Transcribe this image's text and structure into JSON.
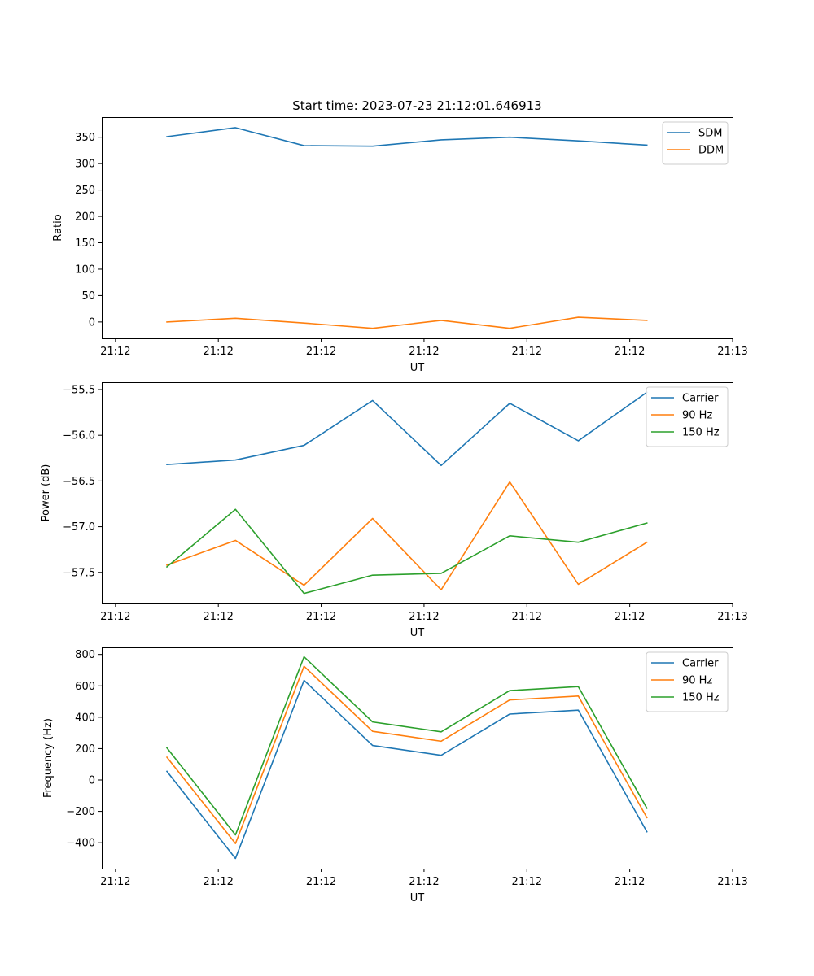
{
  "figure": {
    "title": "Start time: 2023-07-23 21:12:01.646913"
  },
  "colors": {
    "blue": "#1f77b4",
    "orange": "#ff7f0e",
    "green": "#2ca02c"
  },
  "chart_data": [
    {
      "type": "line",
      "title": "Start time: 2023-07-23 21:12:01.646913",
      "xlabel": "UT",
      "ylabel": "Ratio",
      "xlim": [
        -0.2,
        9
      ],
      "x_ticks": [
        0,
        1.5,
        3,
        4.5,
        6,
        7.5,
        9
      ],
      "x_tick_labels": [
        "21:12",
        "21:12",
        "21:12",
        "21:12",
        "21:12",
        "21:12",
        "21:13"
      ],
      "x": [
        0.75,
        1.75,
        2.75,
        3.75,
        4.75,
        5.75,
        6.75,
        7.75
      ],
      "ylim": [
        -31,
        388
      ],
      "y_ticks": [
        0,
        50,
        100,
        150,
        200,
        250,
        300,
        350
      ],
      "y_tick_labels": [
        "0",
        "50",
        "100",
        "150",
        "200",
        "250",
        "300",
        "350"
      ],
      "legend": "top-right",
      "series": [
        {
          "name": "SDM",
          "color": "#1f77b4",
          "values": [
            351,
            368,
            334,
            333,
            345,
            350,
            343,
            335
          ]
        },
        {
          "name": "DDM",
          "color": "#ff7f0e",
          "values": [
            0,
            7,
            -2,
            -12,
            3,
            -12,
            9,
            3
          ]
        }
      ]
    },
    {
      "type": "line",
      "title": "",
      "xlabel": "UT",
      "ylabel": "Power (dB)",
      "xlim": [
        -0.2,
        9
      ],
      "x_ticks": [
        0,
        1.5,
        3,
        4.5,
        6,
        7.5,
        9
      ],
      "x_tick_labels": [
        "21:12",
        "21:12",
        "21:12",
        "21:12",
        "21:12",
        "21:12",
        "21:13"
      ],
      "x": [
        0.75,
        1.75,
        2.75,
        3.75,
        4.75,
        5.75,
        6.75,
        7.75
      ],
      "ylim": [
        -57.84,
        -55.42
      ],
      "y_ticks": [
        -57.5,
        -57.0,
        -56.5,
        -56.0,
        -55.5
      ],
      "y_tick_labels": [
        "−57.5",
        "−57.0",
        "−56.5",
        "−56.0",
        "−55.5"
      ],
      "legend": "top-right",
      "series": [
        {
          "name": "Carrier",
          "color": "#1f77b4",
          "values": [
            -56.32,
            -56.27,
            -56.11,
            -55.62,
            -56.33,
            -55.65,
            -56.06,
            -55.53
          ]
        },
        {
          "name": "90 Hz",
          "color": "#ff7f0e",
          "values": [
            -57.42,
            -57.15,
            -57.64,
            -56.91,
            -57.69,
            -56.51,
            -57.63,
            -57.17
          ]
        },
        {
          "name": "150 Hz",
          "color": "#2ca02c",
          "values": [
            -57.44,
            -56.81,
            -57.73,
            -57.53,
            -57.51,
            -57.1,
            -57.17,
            -56.96
          ]
        }
      ]
    },
    {
      "type": "line",
      "title": "",
      "xlabel": "UT",
      "ylabel": "Frequency (Hz)",
      "xlim": [
        -0.2,
        9
      ],
      "x_ticks": [
        0,
        1.5,
        3,
        4.5,
        6,
        7.5,
        9
      ],
      "x_tick_labels": [
        "21:12",
        "21:12",
        "21:12",
        "21:12",
        "21:12",
        "21:12",
        "21:13"
      ],
      "x": [
        0.75,
        1.75,
        2.75,
        3.75,
        4.75,
        5.75,
        6.75,
        7.75
      ],
      "ylim": [
        -565,
        845
      ],
      "y_ticks": [
        -400,
        -200,
        0,
        200,
        400,
        600,
        800
      ],
      "y_tick_labels": [
        "−400",
        "−200",
        "0",
        "200",
        "400",
        "600",
        "800"
      ],
      "legend": "top-right",
      "series": [
        {
          "name": "Carrier",
          "color": "#1f77b4",
          "values": [
            55,
            -500,
            635,
            220,
            157,
            420,
            445,
            -330
          ]
        },
        {
          "name": "90 Hz",
          "color": "#ff7f0e",
          "values": [
            145,
            -405,
            725,
            310,
            247,
            510,
            535,
            -240
          ]
        },
        {
          "name": "150 Hz",
          "color": "#2ca02c",
          "values": [
            205,
            -350,
            785,
            370,
            307,
            570,
            595,
            -180
          ]
        }
      ]
    }
  ]
}
